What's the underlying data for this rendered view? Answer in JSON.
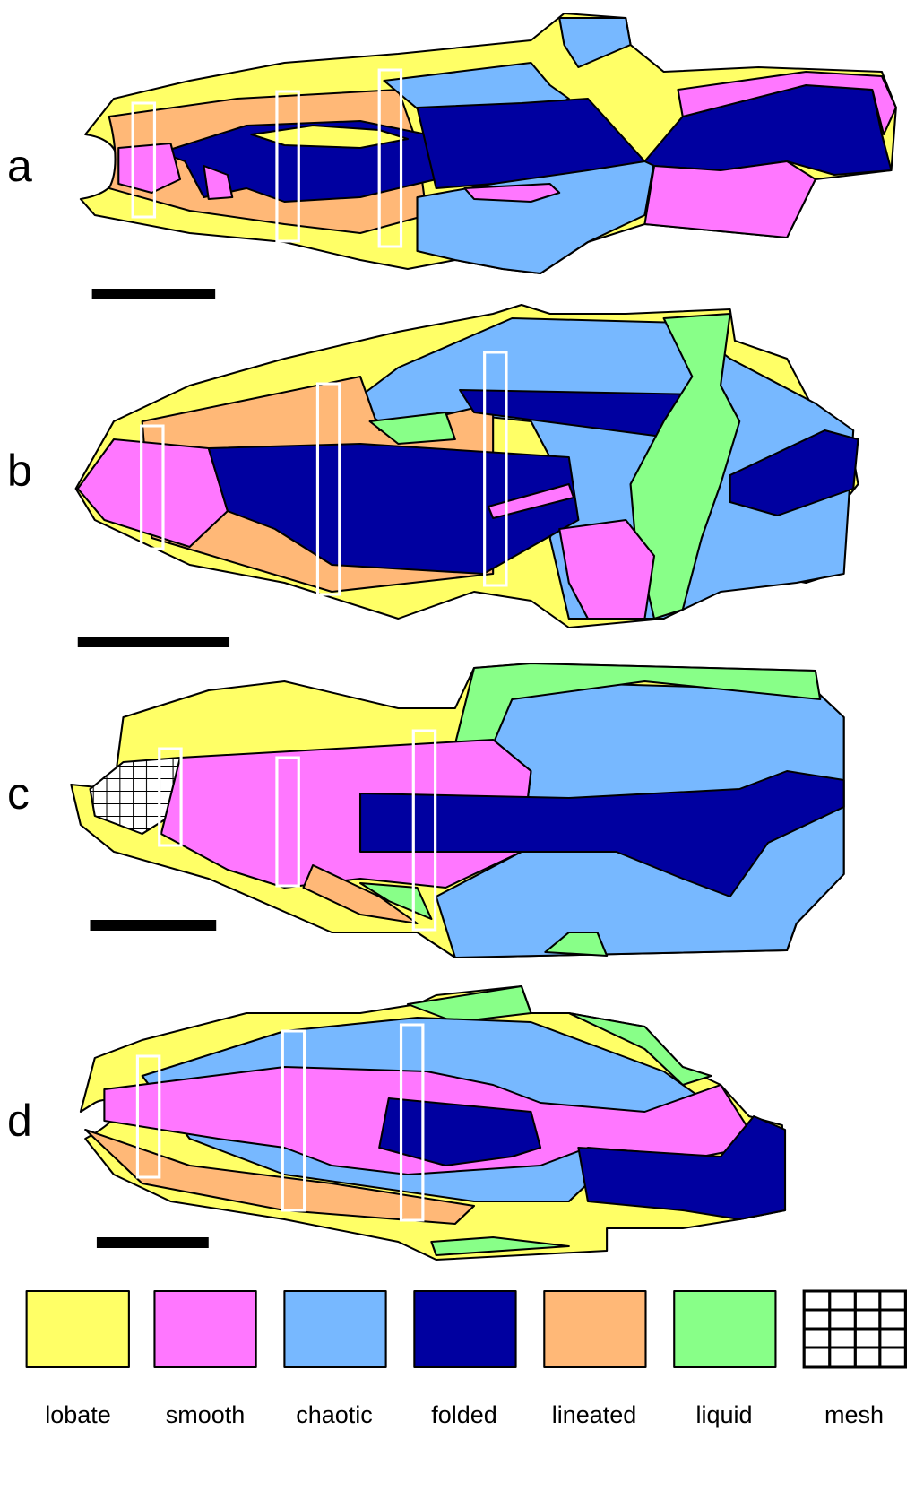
{
  "panels": [
    {
      "label": "a"
    },
    {
      "label": "b"
    },
    {
      "label": "c"
    },
    {
      "label": "d"
    }
  ],
  "legend": [
    {
      "label": "lobate"
    },
    {
      "label": "smooth"
    },
    {
      "label": "chaotic"
    },
    {
      "label": "folded"
    },
    {
      "label": "lineated"
    },
    {
      "label": "liquid"
    },
    {
      "label": "mesh"
    }
  ]
}
